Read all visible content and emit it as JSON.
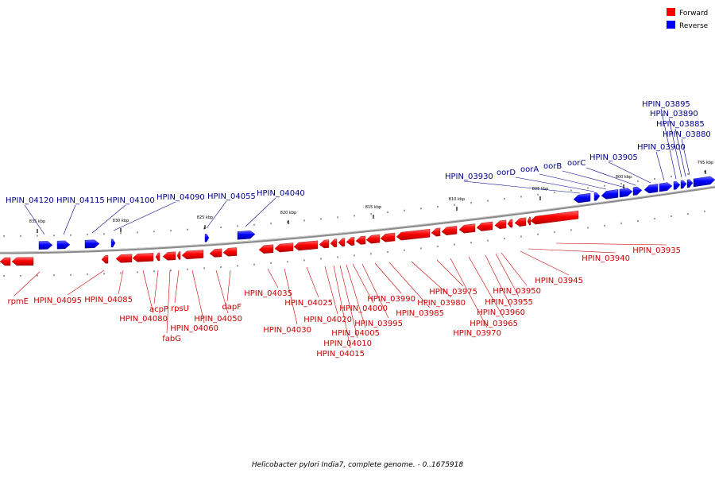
{
  "caption": "Helicobacter pylori India7, complete genome. - 0..1675918",
  "legend": {
    "forward": {
      "label": "Forward",
      "color": "#ff0000"
    },
    "reverse": {
      "label": "Reverse",
      "color": "#0000ff"
    }
  },
  "colors": {
    "forward_label": "#cc0000",
    "reverse_label": "#00008b",
    "backbone": "#8a8a8a"
  },
  "scale_ticks": [
    "835 kbp",
    "830 kbp",
    "825 kbp",
    "820 kbp",
    "815 kbp",
    "810 kbp",
    "805 kbp",
    "800 kbp",
    "795 kbp"
  ],
  "reverse_genes": [
    "HPIN_04120",
    "HPIN_04115",
    "HPIN_04100",
    "HPIN_04090",
    "HPIN_04055",
    "HPIN_04040",
    "HPIN_03930",
    "oorD",
    "oorA",
    "oorB",
    "oorC",
    "HPIN_03905",
    "HPIN_03900",
    "HPIN_03895",
    "HPIN_03890",
    "HPIN_03885",
    "HPIN_03880"
  ],
  "forward_genes": [
    "rpmE",
    "HPIN_04095",
    "HPIN_04085",
    "HPIN_04080",
    "fabG",
    "acpP",
    "rpsU",
    "HPIN_04060",
    "HPIN_04050",
    "dapF",
    "HPIN_04035",
    "HPIN_04030",
    "HPIN_04025",
    "HPIN_04020",
    "HPIN_04015",
    "HPIN_04010",
    "HPIN_04005",
    "HPIN_04000",
    "HPIN_03995",
    "HPIN_03990",
    "HPIN_03985",
    "HPIN_03980",
    "HPIN_03975",
    "HPIN_03970",
    "HPIN_03965",
    "HPIN_03960",
    "HPIN_03955",
    "HPIN_03950",
    "HPIN_03945",
    "HPIN_03940",
    "HPIN_03935"
  ]
}
